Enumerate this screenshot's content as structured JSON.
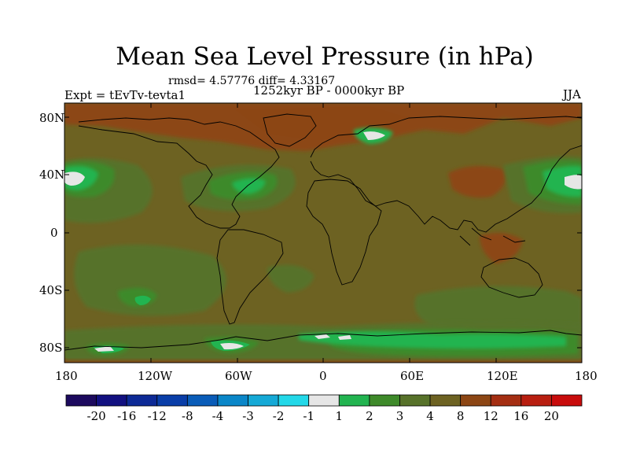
{
  "title": "Mean Sea Level Pressure (in hPa)",
  "stats": "rmsd= 4.57776 diff= 4.33167",
  "experiment": "Expt = tEvTv-tevta1",
  "period": "1252kyr BP - 0000kyr BP",
  "season": "JJA",
  "y_ticks": [
    "80N",
    "40N",
    "0",
    "40S",
    "80S"
  ],
  "x_ticks": [
    "180",
    "120W",
    "60W",
    "0",
    "60E",
    "120E",
    "180"
  ],
  "colorbar": {
    "labels": [
      "-20",
      "-16",
      "-12",
      "-8",
      "-4",
      "-3",
      "-2",
      "-1",
      "1",
      "2",
      "3",
      "4",
      "8",
      "12",
      "16",
      "20"
    ],
    "colors": [
      "#1c0a5e",
      "#121080",
      "#0d2a96",
      "#0a3ea8",
      "#0a5cb8",
      "#0a86c8",
      "#15a9d6",
      "#23d8e8",
      "#e6e6e6",
      "#22b450",
      "#3e8a2a",
      "#57722a",
      "#6d6222",
      "#8c4614",
      "#a42e12",
      "#b81e10",
      "#c80c0c"
    ]
  },
  "colors": {
    "background_field": "#6d6222",
    "low_anomaly": "#57722a",
    "medium_anomaly": "#3e8a2a",
    "high_anomaly": "#22b450",
    "peak_anomaly": "#e6e6e6",
    "positive_anomaly": "#8c4614"
  }
}
